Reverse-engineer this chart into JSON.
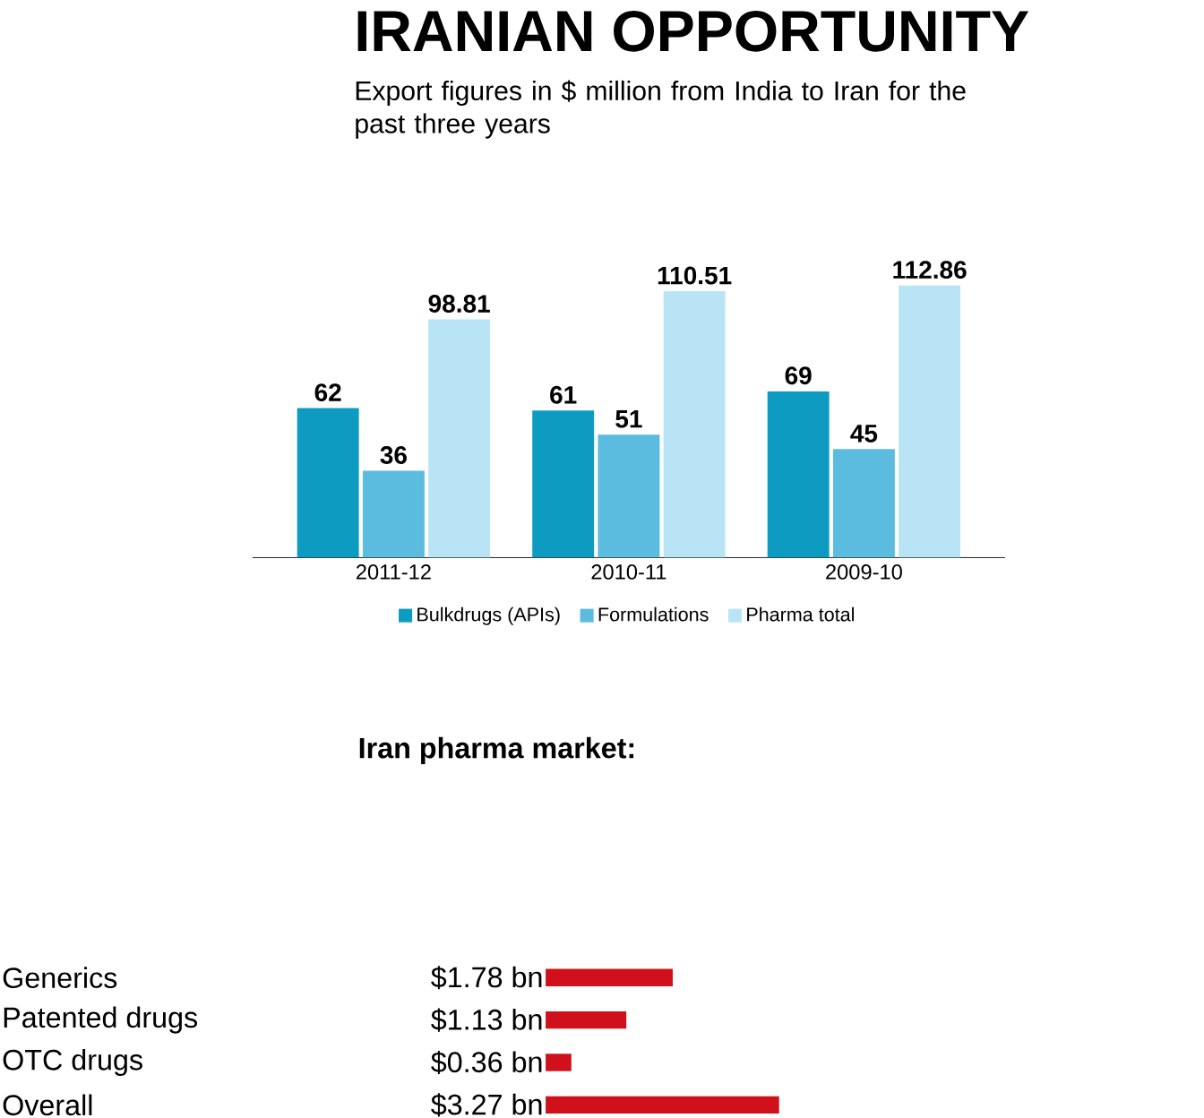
{
  "chart_data": [
    {
      "type": "bar",
      "title": "IRANIAN OPPORTUNITY",
      "subtitle": "Export figures in $ million from India to Iran for the past three years",
      "categories": [
        "2011-12",
        "2010-11",
        "2009-10"
      ],
      "series": [
        {
          "name": "Bulkdrugs (APIs)",
          "color": "#0e9bc2",
          "values": [
            62,
            61,
            69
          ]
        },
        {
          "name": "Formulations",
          "color": "#5cbce0",
          "values": [
            36,
            51,
            45
          ]
        },
        {
          "name": "Pharma total",
          "color": "#b8e4f5",
          "values": [
            98.81,
            110.51,
            112.86
          ]
        }
      ],
      "data_labels": true,
      "legend": "bottom"
    },
    {
      "type": "bar",
      "orientation": "horizontal",
      "title": "Iran pharma market:",
      "categories": [
        "Generics",
        "Patented drugs",
        "OTC drugs",
        "Overall"
      ],
      "values": [
        1.78,
        1.13,
        0.36,
        3.27
      ],
      "color": "#d0101a",
      "value_labels": [
        "$1.78 bn",
        "$1.13 bn",
        "$0.36 bn",
        "$3.27 bn"
      ]
    }
  ]
}
